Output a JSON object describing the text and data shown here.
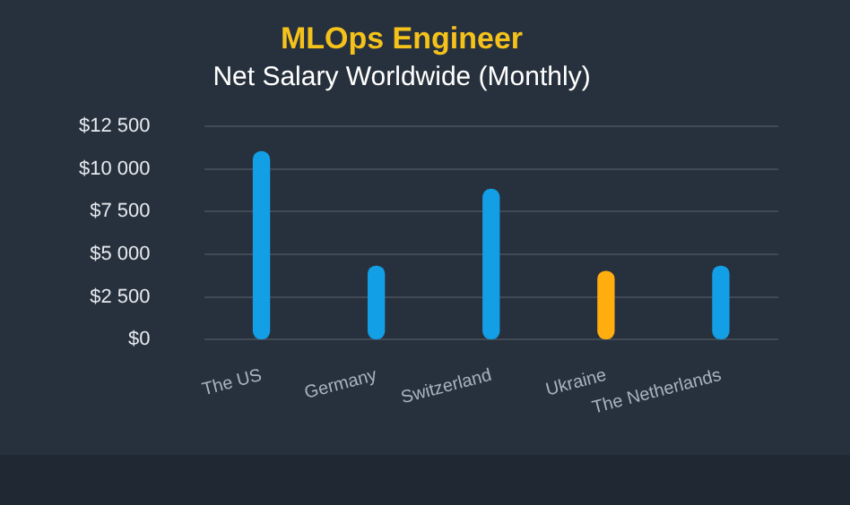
{
  "chart_data": {
    "type": "bar",
    "title": "MLOps Engineer",
    "subtitle": "Net Salary Worldwide (Monthly)",
    "categories": [
      "The US",
      "Germany",
      "Switzerland",
      "Ukraine",
      "The Netherlands"
    ],
    "values": [
      11000,
      4300,
      8800,
      4000,
      4300
    ],
    "colors": [
      "#139fe6",
      "#139fe6",
      "#139fe6",
      "#ffad0f",
      "#139fe6"
    ],
    "ylim": [
      0,
      12500
    ],
    "yticks": [
      {
        "value": 0,
        "label": "$0"
      },
      {
        "value": 2500,
        "label": "$2 500"
      },
      {
        "value": 5000,
        "label": "$5 000"
      },
      {
        "value": 7500,
        "label": "$7 500"
      },
      {
        "value": 10000,
        "label": "$10 000"
      },
      {
        "value": 12500,
        "label": "$12 500"
      }
    ],
    "grid": "y",
    "legend": false
  }
}
